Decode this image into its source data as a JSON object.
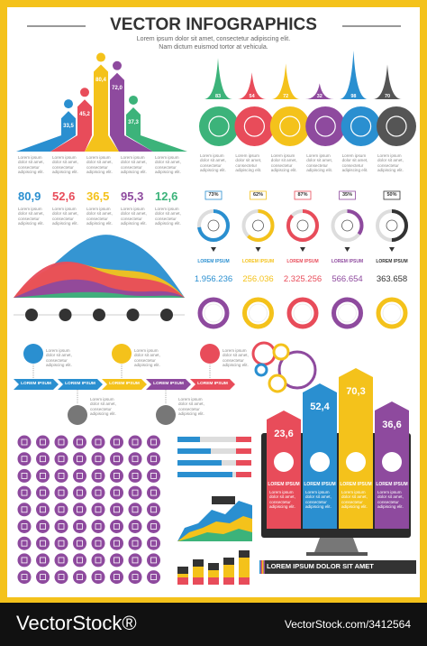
{
  "header": {
    "title": "VECTOR INFOGRAPHICS",
    "subtitle": [
      "Lorem ipsum dolor sit amet, consectetur adipiscing elit.",
      "Nam dictum euismod tortor at vehicula."
    ]
  },
  "arrows": {
    "values": [
      "33,5",
      "45,2",
      "80,4",
      "72,0",
      "37,3"
    ],
    "captions": [
      "Lorem ipsum dolor sit amet, consectetur adipiscing elit.",
      "Lorem ipsum dolor sit amet, consectetur adipiscing elit.",
      "Lorem ipsum dolor sit amet, consectetur adipiscing elit.",
      "Lorem ipsum dolor sit amet, consectetur adipiscing elit.",
      "Lorem ipsum dolor sit amet, consectetur adipiscing elit."
    ]
  },
  "peaks": {
    "values": [
      83,
      54,
      72,
      32,
      98,
      70
    ],
    "captions": [
      "Lorem ipsum dolor sit amet, consectetur adipiscing elit.",
      "Lorem ipsum dolor sit amet, consectetur adipiscing elit.",
      "Lorem ipsum dolor sit amet, consectetur adipiscing elit.",
      "Lorem ipsum dolor sit amet, consectetur adipiscing elit.",
      "Lorem ipsum dolor sit amet, consectetur adipiscing elit.",
      "Lorem ipsum dolor sit amet, consectetur adipiscing elit."
    ]
  },
  "stats": {
    "values": [
      "80,9",
      "52,6",
      "36,5",
      "95,3",
      "12,6"
    ],
    "captions": [
      "Lorem ipsum dolor sit amet, consectetur adipiscing elit.",
      "Lorem ipsum dolor sit amet, consectetur adipiscing elit.",
      "Lorem ipsum dolor sit amet, consectetur adipiscing elit.",
      "Lorem ipsum dolor sit amet, consectetur adipiscing elit.",
      "Lorem ipsum dolor sit amet, consectetur adipiscing elit."
    ]
  },
  "rings": {
    "percents": [
      "73%",
      "62%",
      "87%",
      "35%",
      "50%"
    ],
    "labels": [
      "LOREM IPSUM",
      "LOREM IPSUM",
      "LOREM IPSUM",
      "LOREM IPSUM",
      "LOREM IPSUM"
    ],
    "values": [
      "1.956.236",
      "256.036",
      "2.325.256",
      "566.654",
      "363.658"
    ]
  },
  "timeline": {
    "labels": [
      "LOREM IPSUM",
      "LOREM IPSUM",
      "LOREM IPSUM",
      "LOREM IPSUM",
      "LOREM IPSUM"
    ],
    "captions": [
      "Lorem ipsum dolor sit amet, consectetur adipiscing elit.",
      "Lorem ipsum dolor sit amet, consectetur adipiscing elit.",
      "Lorem ipsum dolor sit amet, consectetur adipiscing elit.",
      "Lorem ipsum dolor sit amet, consectetur adipiscing elit.",
      "Lorem ipsum dolor sit amet, consectetur adipiscing elit."
    ]
  },
  "columns": {
    "values": [
      "23,6",
      "52,4",
      "70,3",
      "36,6"
    ],
    "labels": [
      "LOREM IPSUM",
      "LOREM IPSUM",
      "LOREM IPSUM",
      "LOREM IPSUM"
    ],
    "captions": [
      "Lorem ipsum dolor sit amet, consectetur adipiscing elit.",
      "Lorem ipsum dolor sit amet, consectetur adipiscing elit.",
      "Lorem ipsum dolor sit amet, consectetur adipiscing elit.",
      "Lorem ipsum dolor sit amet, consectetur adipiscing elit."
    ]
  },
  "banner": "LOREM IPSUM DOLOR SIT AMET",
  "footer": {
    "brand": "VectorStock®",
    "id": "VectorStock.com/3412564"
  }
}
